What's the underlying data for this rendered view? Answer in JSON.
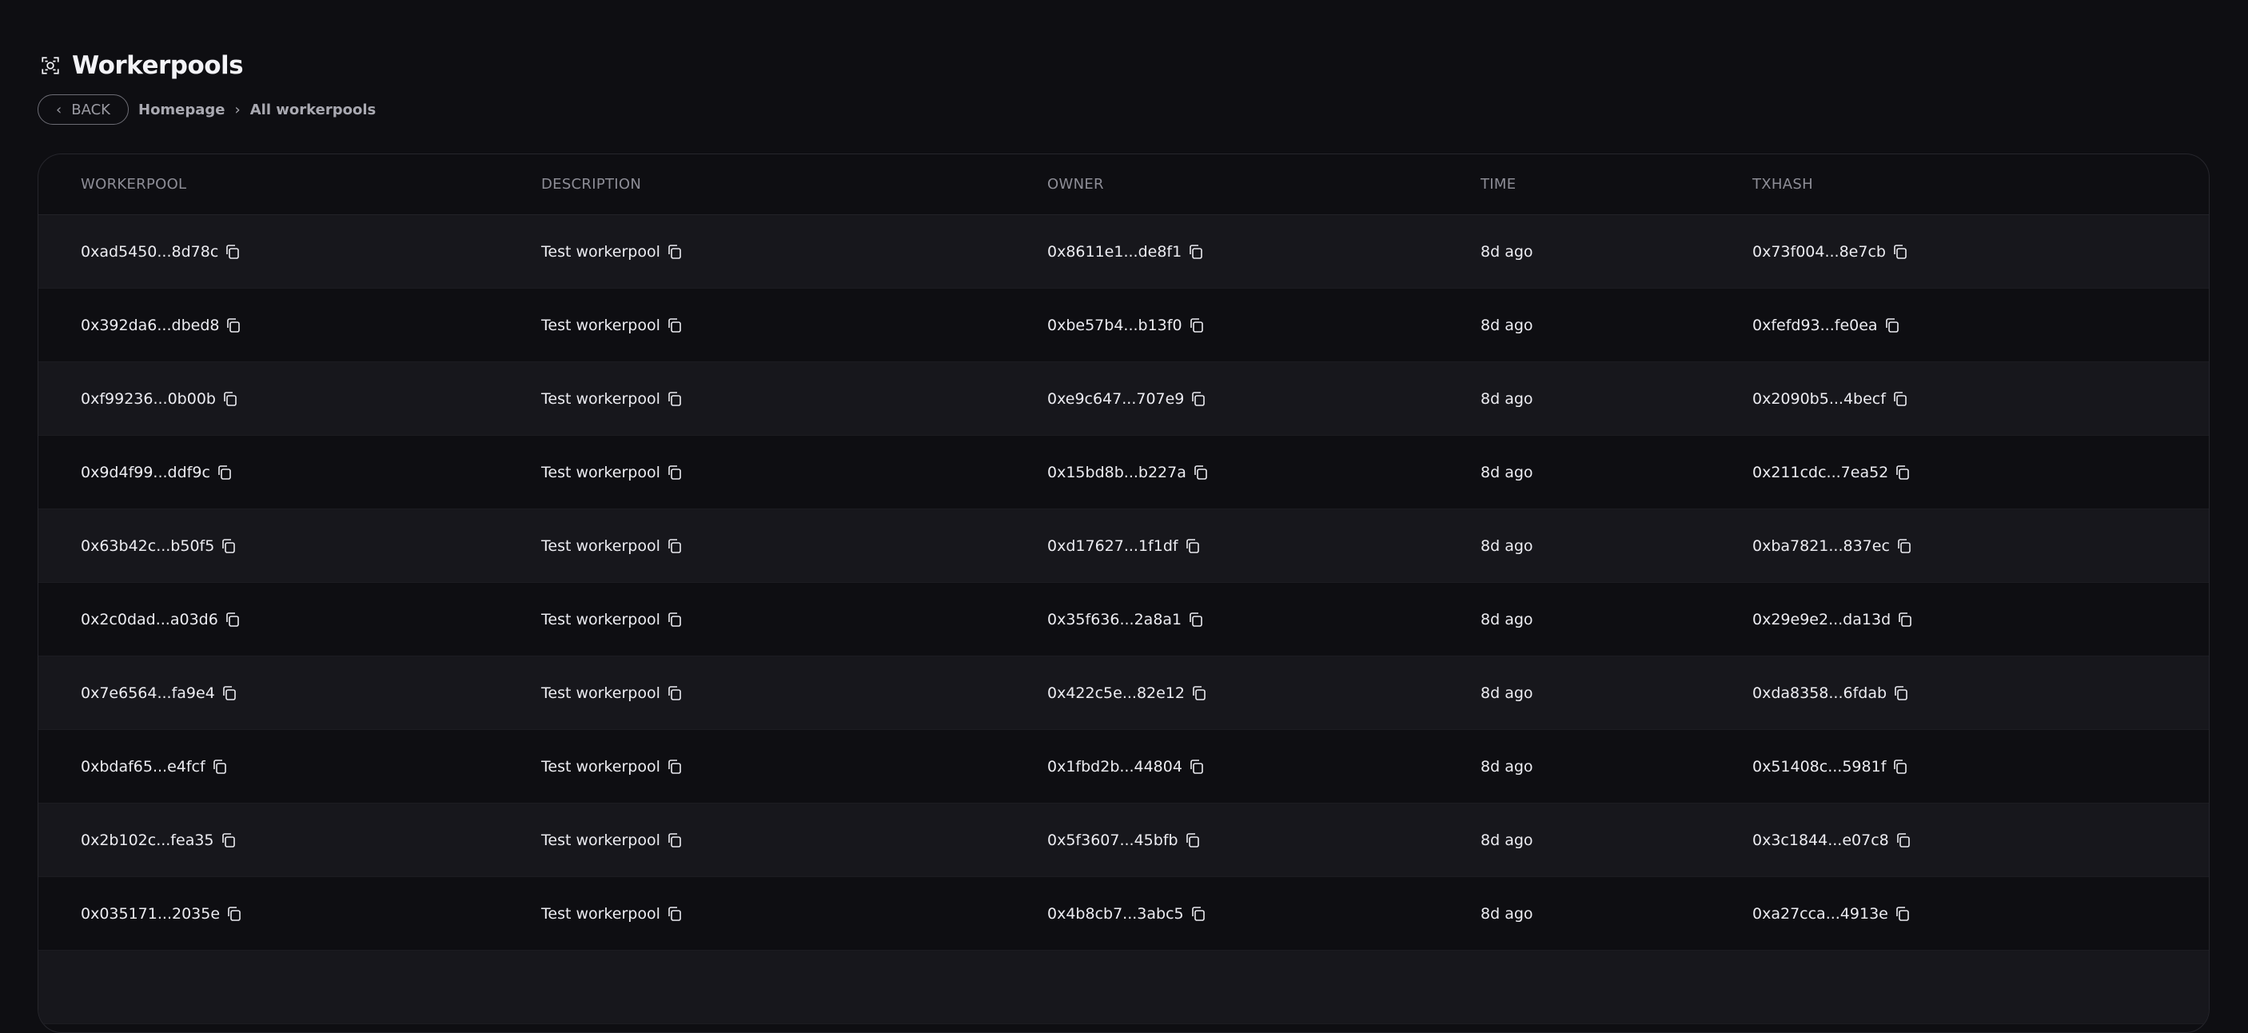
{
  "page": {
    "title": "Workerpools",
    "title_icon": "workerpool-icon"
  },
  "breadcrumb": {
    "back_label": "BACK",
    "items": [
      "Homepage",
      "All workerpools"
    ]
  },
  "table": {
    "columns": [
      "WORKERPOOL",
      "DESCRIPTION",
      "OWNER",
      "TIME",
      "TXHASH"
    ],
    "rows": [
      [
        "0xad5450...8d78c",
        "Test workerpool",
        "0x8611e1...de8f1",
        "8d ago",
        "0x73f004...8e7cb"
      ],
      [
        "0x392da6...dbed8",
        "Test workerpool",
        "0xbe57b4...b13f0",
        "8d ago",
        "0xfefd93...fe0ea"
      ],
      [
        "0xf99236...0b00b",
        "Test workerpool",
        "0xe9c647...707e9",
        "8d ago",
        "0x2090b5...4becf"
      ],
      [
        "0x9d4f99...ddf9c",
        "Test workerpool",
        "0x15bd8b...b227a",
        "8d ago",
        "0x211cdc...7ea52"
      ],
      [
        "0x63b42c...b50f5",
        "Test workerpool",
        "0xd17627...1f1df",
        "8d ago",
        "0xba7821...837ec"
      ],
      [
        "0x2c0dad...a03d6",
        "Test workerpool",
        "0x35f636...2a8a1",
        "8d ago",
        "0x29e9e2...da13d"
      ],
      [
        "0x7e6564...fa9e4",
        "Test workerpool",
        "0x422c5e...82e12",
        "8d ago",
        "0xda8358...6fdab"
      ],
      [
        "0xbdaf65...e4fcf",
        "Test workerpool",
        "0x1fbd2b...44804",
        "8d ago",
        "0x51408c...5981f"
      ],
      [
        "0x2b102c...fea35",
        "Test workerpool",
        "0x5f3607...45bfb",
        "8d ago",
        "0x3c1844...e07c8"
      ],
      [
        "0x035171...2035e",
        "Test workerpool",
        "0x4b8cb7...3abc5",
        "8d ago",
        "0xa27cca...4913e"
      ]
    ],
    "copy_icon": "copy-icon",
    "copyable_columns": [
      0,
      1,
      2,
      4
    ]
  }
}
